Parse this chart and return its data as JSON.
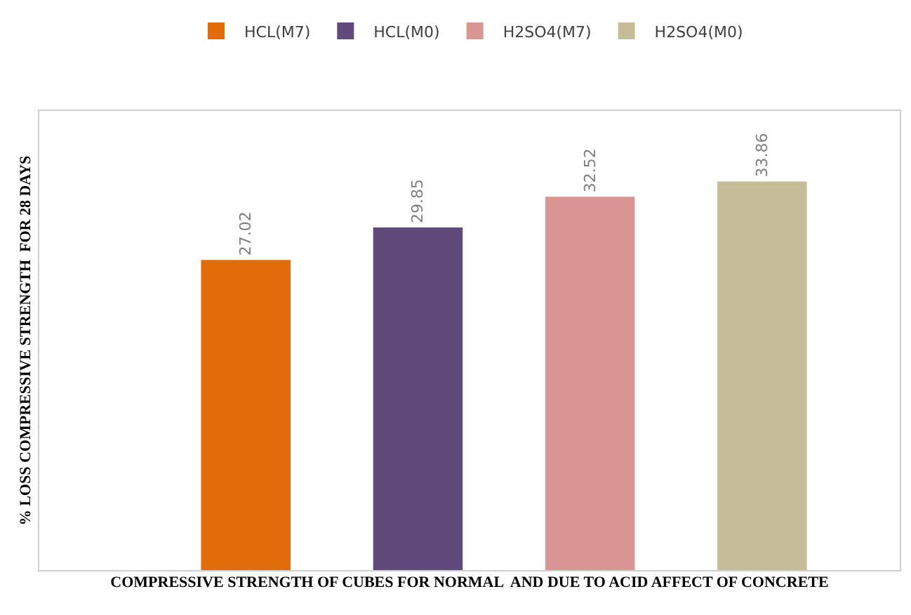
{
  "chart_data": {
    "type": "bar",
    "xlabel": "COMPRESSIVE STRENGTH OF CUBES FOR NORMAL  AND DUE TO ACID AFFECT OF CONCRETE",
    "ylabel": "% LOSS COMPRESSIVE STRENGTH  FOR 28 DAYS",
    "categories": [
      null,
      null,
      null,
      null
    ],
    "stacked": true,
    "series": [
      {
        "name": "HCL(M7)",
        "color": "#e36c0a",
        "values": [
          27.02,
          null,
          null,
          null
        ]
      },
      {
        "name": "HCL(M0)",
        "color": "#604a7b",
        "values": [
          null,
          29.85,
          null,
          null
        ]
      },
      {
        "name": "H2SO4(M7)",
        "color": "#d99594",
        "values": [
          null,
          null,
          32.52,
          null
        ]
      },
      {
        "name": "H2SO4(M0)",
        "color": "#c4bd97",
        "values": [
          null,
          null,
          null,
          33.86
        ]
      }
    ],
    "ylim": [
      0,
      40
    ],
    "tick_labels": false,
    "legend": "top",
    "data_labels": true
  }
}
